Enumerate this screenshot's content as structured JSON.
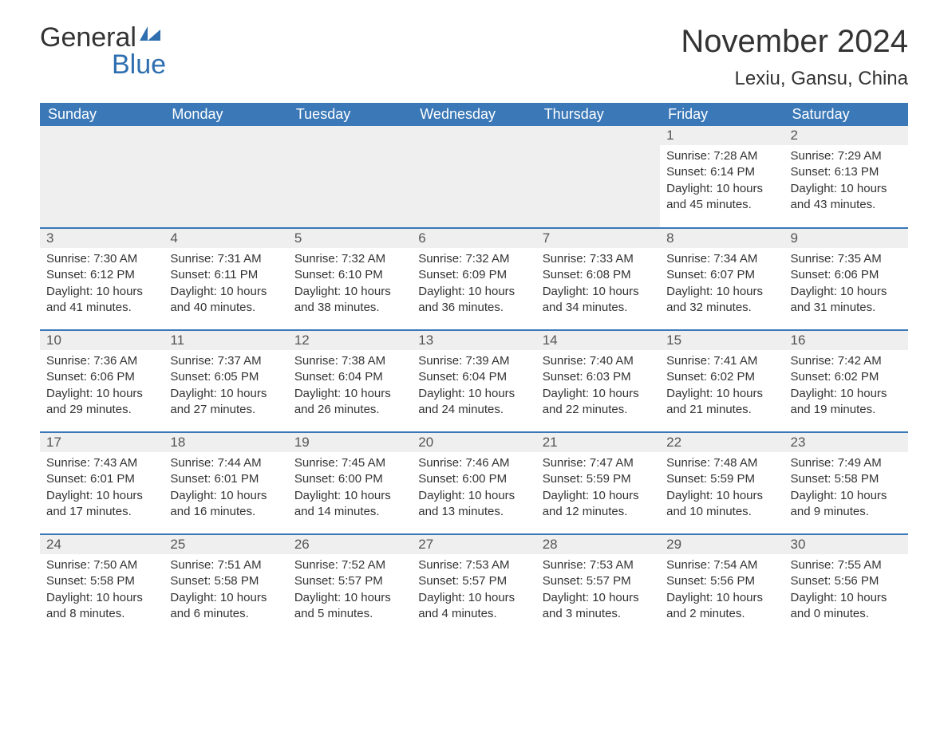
{
  "brand": {
    "general": "General",
    "blue": "Blue",
    "flag_color": "#2f6fb0"
  },
  "title": "November 2024",
  "location": "Lexiu, Gansu, China",
  "colors": {
    "header_bg": "#3a78b7",
    "header_text": "#ffffff",
    "day_strip_bg": "#efefef",
    "row_divider": "#3a78b7",
    "body_text": "#333333",
    "brand_blue": "#2f6fb0"
  },
  "weekdays": [
    "Sunday",
    "Monday",
    "Tuesday",
    "Wednesday",
    "Thursday",
    "Friday",
    "Saturday"
  ],
  "weeks": [
    [
      null,
      null,
      null,
      null,
      null,
      {
        "n": "1",
        "sunrise": "Sunrise: 7:28 AM",
        "sunset": "Sunset: 6:14 PM",
        "daylight": "Daylight: 10 hours and 45 minutes."
      },
      {
        "n": "2",
        "sunrise": "Sunrise: 7:29 AM",
        "sunset": "Sunset: 6:13 PM",
        "daylight": "Daylight: 10 hours and 43 minutes."
      }
    ],
    [
      {
        "n": "3",
        "sunrise": "Sunrise: 7:30 AM",
        "sunset": "Sunset: 6:12 PM",
        "daylight": "Daylight: 10 hours and 41 minutes."
      },
      {
        "n": "4",
        "sunrise": "Sunrise: 7:31 AM",
        "sunset": "Sunset: 6:11 PM",
        "daylight": "Daylight: 10 hours and 40 minutes."
      },
      {
        "n": "5",
        "sunrise": "Sunrise: 7:32 AM",
        "sunset": "Sunset: 6:10 PM",
        "daylight": "Daylight: 10 hours and 38 minutes."
      },
      {
        "n": "6",
        "sunrise": "Sunrise: 7:32 AM",
        "sunset": "Sunset: 6:09 PM",
        "daylight": "Daylight: 10 hours and 36 minutes."
      },
      {
        "n": "7",
        "sunrise": "Sunrise: 7:33 AM",
        "sunset": "Sunset: 6:08 PM",
        "daylight": "Daylight: 10 hours and 34 minutes."
      },
      {
        "n": "8",
        "sunrise": "Sunrise: 7:34 AM",
        "sunset": "Sunset: 6:07 PM",
        "daylight": "Daylight: 10 hours and 32 minutes."
      },
      {
        "n": "9",
        "sunrise": "Sunrise: 7:35 AM",
        "sunset": "Sunset: 6:06 PM",
        "daylight": "Daylight: 10 hours and 31 minutes."
      }
    ],
    [
      {
        "n": "10",
        "sunrise": "Sunrise: 7:36 AM",
        "sunset": "Sunset: 6:06 PM",
        "daylight": "Daylight: 10 hours and 29 minutes."
      },
      {
        "n": "11",
        "sunrise": "Sunrise: 7:37 AM",
        "sunset": "Sunset: 6:05 PM",
        "daylight": "Daylight: 10 hours and 27 minutes."
      },
      {
        "n": "12",
        "sunrise": "Sunrise: 7:38 AM",
        "sunset": "Sunset: 6:04 PM",
        "daylight": "Daylight: 10 hours and 26 minutes."
      },
      {
        "n": "13",
        "sunrise": "Sunrise: 7:39 AM",
        "sunset": "Sunset: 6:04 PM",
        "daylight": "Daylight: 10 hours and 24 minutes."
      },
      {
        "n": "14",
        "sunrise": "Sunrise: 7:40 AM",
        "sunset": "Sunset: 6:03 PM",
        "daylight": "Daylight: 10 hours and 22 minutes."
      },
      {
        "n": "15",
        "sunrise": "Sunrise: 7:41 AM",
        "sunset": "Sunset: 6:02 PM",
        "daylight": "Daylight: 10 hours and 21 minutes."
      },
      {
        "n": "16",
        "sunrise": "Sunrise: 7:42 AM",
        "sunset": "Sunset: 6:02 PM",
        "daylight": "Daylight: 10 hours and 19 minutes."
      }
    ],
    [
      {
        "n": "17",
        "sunrise": "Sunrise: 7:43 AM",
        "sunset": "Sunset: 6:01 PM",
        "daylight": "Daylight: 10 hours and 17 minutes."
      },
      {
        "n": "18",
        "sunrise": "Sunrise: 7:44 AM",
        "sunset": "Sunset: 6:01 PM",
        "daylight": "Daylight: 10 hours and 16 minutes."
      },
      {
        "n": "19",
        "sunrise": "Sunrise: 7:45 AM",
        "sunset": "Sunset: 6:00 PM",
        "daylight": "Daylight: 10 hours and 14 minutes."
      },
      {
        "n": "20",
        "sunrise": "Sunrise: 7:46 AM",
        "sunset": "Sunset: 6:00 PM",
        "daylight": "Daylight: 10 hours and 13 minutes."
      },
      {
        "n": "21",
        "sunrise": "Sunrise: 7:47 AM",
        "sunset": "Sunset: 5:59 PM",
        "daylight": "Daylight: 10 hours and 12 minutes."
      },
      {
        "n": "22",
        "sunrise": "Sunrise: 7:48 AM",
        "sunset": "Sunset: 5:59 PM",
        "daylight": "Daylight: 10 hours and 10 minutes."
      },
      {
        "n": "23",
        "sunrise": "Sunrise: 7:49 AM",
        "sunset": "Sunset: 5:58 PM",
        "daylight": "Daylight: 10 hours and 9 minutes."
      }
    ],
    [
      {
        "n": "24",
        "sunrise": "Sunrise: 7:50 AM",
        "sunset": "Sunset: 5:58 PM",
        "daylight": "Daylight: 10 hours and 8 minutes."
      },
      {
        "n": "25",
        "sunrise": "Sunrise: 7:51 AM",
        "sunset": "Sunset: 5:58 PM",
        "daylight": "Daylight: 10 hours and 6 minutes."
      },
      {
        "n": "26",
        "sunrise": "Sunrise: 7:52 AM",
        "sunset": "Sunset: 5:57 PM",
        "daylight": "Daylight: 10 hours and 5 minutes."
      },
      {
        "n": "27",
        "sunrise": "Sunrise: 7:53 AM",
        "sunset": "Sunset: 5:57 PM",
        "daylight": "Daylight: 10 hours and 4 minutes."
      },
      {
        "n": "28",
        "sunrise": "Sunrise: 7:53 AM",
        "sunset": "Sunset: 5:57 PM",
        "daylight": "Daylight: 10 hours and 3 minutes."
      },
      {
        "n": "29",
        "sunrise": "Sunrise: 7:54 AM",
        "sunset": "Sunset: 5:56 PM",
        "daylight": "Daylight: 10 hours and 2 minutes."
      },
      {
        "n": "30",
        "sunrise": "Sunrise: 7:55 AM",
        "sunset": "Sunset: 5:56 PM",
        "daylight": "Daylight: 10 hours and 0 minutes."
      }
    ]
  ]
}
